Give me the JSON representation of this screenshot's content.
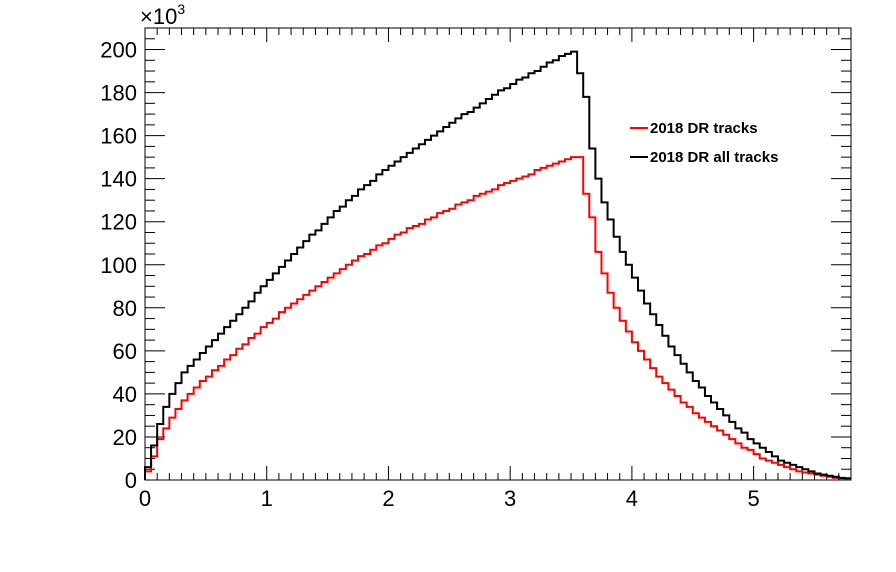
{
  "chart_data": {
    "type": "line",
    "title": "",
    "xlabel": "",
    "ylabel": "",
    "y_multiplier_base": "×10",
    "y_multiplier_exp": "3",
    "xlim": [
      0,
      5.8
    ],
    "ylim": [
      0,
      210
    ],
    "x_ticks": [
      0,
      1,
      2,
      3,
      4,
      5
    ],
    "y_ticks": [
      0,
      20,
      40,
      60,
      80,
      100,
      120,
      140,
      160,
      180,
      200
    ],
    "bin_width": 0.05,
    "grid": false,
    "legend_position": "top-right",
    "series": [
      {
        "name": "2018 DR tracks",
        "color": "#ff0000",
        "values": [
          4,
          11,
          19,
          24,
          29,
          33,
          37,
          40,
          43,
          46,
          48,
          51,
          53,
          56,
          58,
          61,
          63,
          66,
          68,
          71,
          73,
          75,
          78,
          80,
          82,
          84,
          86,
          88,
          90,
          92,
          94,
          96,
          98,
          100,
          102,
          104,
          105,
          107,
          109,
          110,
          112,
          114,
          115,
          117,
          118,
          119,
          121,
          122,
          124,
          125,
          126,
          128,
          129,
          130,
          132,
          133,
          134,
          135,
          137,
          138,
          139,
          140,
          141,
          142,
          144,
          145,
          146,
          147,
          148,
          149,
          150,
          150,
          133,
          122,
          106,
          96,
          87,
          80,
          74,
          69,
          64,
          60,
          56,
          52,
          48,
          45,
          42,
          39,
          36,
          34,
          31,
          29,
          27,
          25,
          23,
          21,
          19,
          17,
          15,
          14,
          12,
          10,
          9,
          8,
          7,
          6,
          5,
          4,
          3.5,
          3,
          2.5,
          2,
          1.5,
          1,
          0.8,
          0.6
        ]
      },
      {
        "name": "2018 DR all tracks",
        "color": "#000000",
        "values": [
          6,
          16,
          26,
          34,
          40,
          45,
          50,
          53,
          56,
          59,
          62,
          65,
          68,
          71,
          74,
          77,
          80,
          83,
          87,
          90,
          93,
          96,
          99,
          102,
          105,
          108,
          111,
          114,
          116,
          119,
          122,
          125,
          127,
          130,
          132,
          135,
          137,
          139,
          142,
          144,
          146,
          148,
          150,
          152,
          154,
          156,
          158,
          160,
          162,
          164,
          166,
          168,
          170,
          171,
          173,
          175,
          177,
          179,
          181,
          182,
          184,
          186,
          187,
          189,
          190,
          192,
          194,
          195,
          197,
          198,
          199,
          189,
          178,
          154,
          140,
          129,
          121,
          113,
          106,
          100,
          94,
          88,
          82,
          77,
          72,
          67,
          62,
          58,
          54,
          50,
          46,
          43,
          39,
          36,
          33,
          30,
          27,
          24,
          22,
          19,
          17,
          15,
          13,
          11,
          9,
          8,
          7,
          6,
          5,
          4,
          3,
          2.5,
          2,
          1.5,
          1,
          0.8
        ]
      }
    ]
  }
}
